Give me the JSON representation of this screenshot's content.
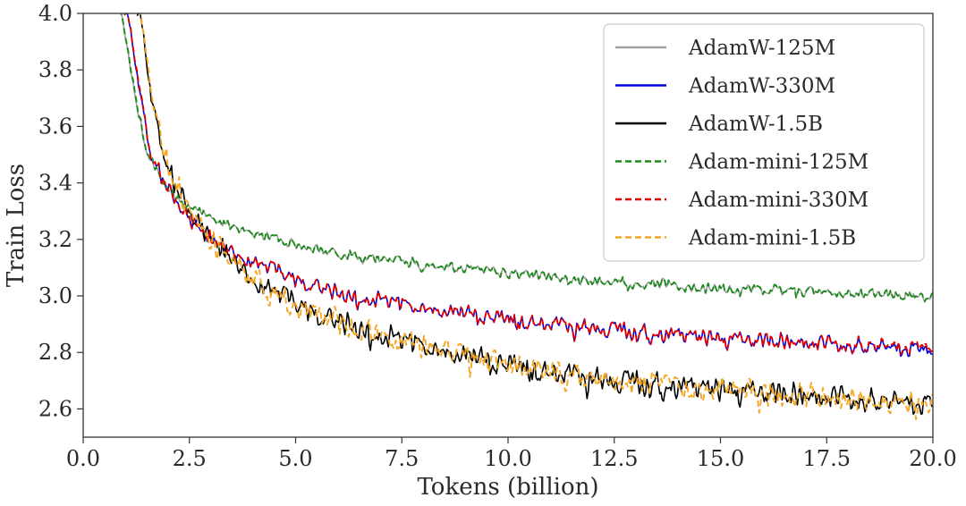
{
  "chart_data": {
    "type": "line",
    "title": "",
    "xlabel": "Tokens (billion)",
    "ylabel": "Train Loss",
    "xlim": [
      0.0,
      20.0
    ],
    "ylim": [
      2.5,
      4.0
    ],
    "xticks": [
      0.0,
      2.5,
      5.0,
      7.5,
      10.0,
      12.5,
      15.0,
      17.5,
      20.0
    ],
    "xtick_labels": [
      "0.0",
      "2.5",
      "5.0",
      "7.5",
      "10.0",
      "12.5",
      "15.0",
      "17.5",
      "20.0"
    ],
    "yticks": [
      2.6,
      2.8,
      3.0,
      3.2,
      3.4,
      3.6,
      3.8,
      4.0
    ],
    "ytick_labels": [
      "2.6",
      "2.8",
      "3.0",
      "3.2",
      "3.4",
      "3.6",
      "3.8",
      "4.0"
    ],
    "grid": false,
    "legend_position": "top-right",
    "series": [
      {
        "name": "AdamW-125M",
        "color": "#a0a0a0",
        "dash": "solid",
        "x": [
          0.9,
          1.2,
          1.5,
          2.0,
          2.5,
          3.0,
          4.0,
          5.0,
          6.0,
          7.5,
          10.0,
          12.5,
          15.0,
          17.5,
          20.0
        ],
        "y": [
          4.0,
          3.72,
          3.5,
          3.38,
          3.32,
          3.27,
          3.22,
          3.18,
          3.15,
          3.12,
          3.08,
          3.05,
          3.03,
          3.01,
          3.0
        ]
      },
      {
        "name": "AdamW-330M",
        "color": "#0000dd",
        "dash": "solid",
        "x": [
          1.05,
          1.3,
          1.6,
          2.0,
          2.5,
          3.0,
          4.0,
          5.0,
          6.0,
          7.5,
          10.0,
          12.5,
          15.0,
          17.5,
          20.0
        ],
        "y": [
          4.0,
          3.75,
          3.5,
          3.38,
          3.27,
          3.2,
          3.12,
          3.06,
          3.01,
          2.97,
          2.92,
          2.88,
          2.85,
          2.83,
          2.81
        ]
      },
      {
        "name": "AdamW-1.5B",
        "color": "#000000",
        "dash": "solid",
        "x": [
          1.35,
          1.6,
          2.0,
          2.5,
          3.0,
          4.0,
          5.0,
          6.0,
          7.5,
          10.0,
          12.5,
          15.0,
          17.5,
          20.0
        ],
        "y": [
          4.0,
          3.7,
          3.45,
          3.3,
          3.2,
          3.06,
          2.97,
          2.91,
          2.84,
          2.76,
          2.7,
          2.67,
          2.64,
          2.62
        ]
      },
      {
        "name": "Adam-mini-125M",
        "color": "#1a8a1a",
        "dash": "dashed",
        "x": [
          0.9,
          1.2,
          1.5,
          2.0,
          2.5,
          3.0,
          4.0,
          5.0,
          6.0,
          7.5,
          10.0,
          12.5,
          15.0,
          17.5,
          20.0
        ],
        "y": [
          4.0,
          3.73,
          3.5,
          3.38,
          3.32,
          3.27,
          3.22,
          3.18,
          3.15,
          3.12,
          3.08,
          3.05,
          3.03,
          3.01,
          3.0
        ]
      },
      {
        "name": "Adam-mini-330M",
        "color": "#e00000",
        "dash": "dashed",
        "x": [
          1.05,
          1.3,
          1.6,
          2.0,
          2.5,
          3.0,
          4.0,
          5.0,
          6.0,
          7.5,
          10.0,
          12.5,
          15.0,
          17.5,
          20.0
        ],
        "y": [
          4.0,
          3.76,
          3.5,
          3.38,
          3.27,
          3.2,
          3.12,
          3.06,
          3.01,
          2.97,
          2.92,
          2.88,
          2.85,
          2.83,
          2.82
        ]
      },
      {
        "name": "Adam-mini-1.5B",
        "color": "#f5a623",
        "dash": "dashed",
        "x": [
          1.35,
          1.6,
          2.0,
          2.5,
          3.0,
          4.0,
          5.0,
          6.0,
          7.5,
          10.0,
          12.5,
          15.0,
          17.5,
          20.0
        ],
        "y": [
          4.0,
          3.71,
          3.45,
          3.3,
          3.2,
          3.06,
          2.97,
          2.91,
          2.84,
          2.76,
          2.7,
          2.67,
          2.64,
          2.62
        ]
      }
    ]
  }
}
